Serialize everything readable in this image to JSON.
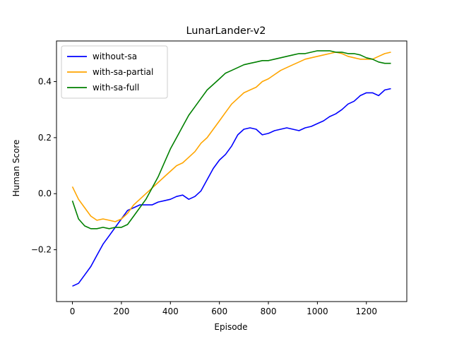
{
  "chart_data": {
    "type": "line",
    "title": "LunarLander-v2",
    "xlabel": "Episode",
    "ylabel": "Human Score",
    "xlim": [
      -65,
      1365
    ],
    "ylim": [
      -0.385,
      0.545
    ],
    "xticks": [
      0,
      200,
      400,
      600,
      800,
      1000,
      1200
    ],
    "xtick_labels": [
      "0",
      "200",
      "400",
      "600",
      "800",
      "1000",
      "1200"
    ],
    "yticks": [
      -0.2,
      0.0,
      0.2,
      0.4
    ],
    "ytick_labels": [
      "−0.2",
      "0.0",
      "0.2",
      "0.4"
    ],
    "grid": false,
    "legend": {
      "position": "top-left"
    },
    "series": [
      {
        "name": "without-sa",
        "color": "#0000ff",
        "x": [
          0,
          25,
          50,
          75,
          100,
          125,
          150,
          175,
          200,
          225,
          250,
          275,
          300,
          325,
          350,
          375,
          400,
          425,
          450,
          475,
          500,
          525,
          550,
          575,
          600,
          625,
          650,
          675,
          700,
          725,
          750,
          775,
          800,
          825,
          850,
          875,
          900,
          925,
          950,
          975,
          1000,
          1025,
          1050,
          1075,
          1100,
          1125,
          1150,
          1175,
          1200,
          1225,
          1250,
          1275,
          1300
        ],
        "y": [
          -0.33,
          -0.32,
          -0.29,
          -0.26,
          -0.22,
          -0.18,
          -0.15,
          -0.12,
          -0.09,
          -0.06,
          -0.05,
          -0.04,
          -0.04,
          -0.04,
          -0.03,
          -0.025,
          -0.02,
          -0.01,
          -0.005,
          -0.02,
          -0.01,
          0.01,
          0.05,
          0.09,
          0.12,
          0.14,
          0.17,
          0.21,
          0.23,
          0.235,
          0.23,
          0.21,
          0.215,
          0.225,
          0.23,
          0.235,
          0.23,
          0.225,
          0.235,
          0.24,
          0.25,
          0.26,
          0.275,
          0.285,
          0.3,
          0.32,
          0.33,
          0.35,
          0.36,
          0.36,
          0.35,
          0.37,
          0.375
        ]
      },
      {
        "name": "with-sa-partial",
        "color": "#ffa500",
        "x": [
          0,
          25,
          50,
          75,
          100,
          125,
          150,
          175,
          200,
          225,
          250,
          275,
          300,
          325,
          350,
          375,
          400,
          425,
          450,
          475,
          500,
          525,
          550,
          575,
          600,
          625,
          650,
          675,
          700,
          725,
          750,
          775,
          800,
          825,
          850,
          875,
          900,
          925,
          950,
          975,
          1000,
          1025,
          1050,
          1075,
          1100,
          1125,
          1150,
          1175,
          1200,
          1225,
          1250,
          1275,
          1300
        ],
        "y": [
          0.025,
          -0.02,
          -0.05,
          -0.08,
          -0.095,
          -0.09,
          -0.095,
          -0.1,
          -0.09,
          -0.07,
          -0.04,
          -0.02,
          0.0,
          0.02,
          0.04,
          0.06,
          0.08,
          0.1,
          0.11,
          0.13,
          0.15,
          0.18,
          0.2,
          0.23,
          0.26,
          0.29,
          0.32,
          0.34,
          0.36,
          0.37,
          0.38,
          0.4,
          0.41,
          0.425,
          0.44,
          0.45,
          0.46,
          0.47,
          0.48,
          0.485,
          0.49,
          0.495,
          0.5,
          0.505,
          0.5,
          0.49,
          0.485,
          0.48,
          0.48,
          0.48,
          0.49,
          0.5,
          0.505
        ]
      },
      {
        "name": "with-sa-full",
        "color": "#008000",
        "x": [
          0,
          25,
          50,
          75,
          100,
          125,
          150,
          175,
          200,
          225,
          250,
          275,
          300,
          325,
          350,
          375,
          400,
          425,
          450,
          475,
          500,
          525,
          550,
          575,
          600,
          625,
          650,
          675,
          700,
          725,
          750,
          775,
          800,
          825,
          850,
          875,
          900,
          925,
          950,
          975,
          1000,
          1025,
          1050,
          1075,
          1100,
          1125,
          1150,
          1175,
          1200,
          1225,
          1250,
          1275,
          1300
        ],
        "y": [
          -0.025,
          -0.09,
          -0.115,
          -0.125,
          -0.125,
          -0.12,
          -0.125,
          -0.12,
          -0.12,
          -0.11,
          -0.08,
          -0.05,
          -0.02,
          0.02,
          0.06,
          0.11,
          0.16,
          0.2,
          0.24,
          0.28,
          0.31,
          0.34,
          0.37,
          0.39,
          0.41,
          0.43,
          0.44,
          0.45,
          0.46,
          0.465,
          0.47,
          0.475,
          0.475,
          0.48,
          0.485,
          0.49,
          0.495,
          0.5,
          0.5,
          0.505,
          0.51,
          0.51,
          0.51,
          0.505,
          0.505,
          0.5,
          0.5,
          0.495,
          0.485,
          0.48,
          0.47,
          0.465,
          0.465
        ]
      }
    ]
  }
}
